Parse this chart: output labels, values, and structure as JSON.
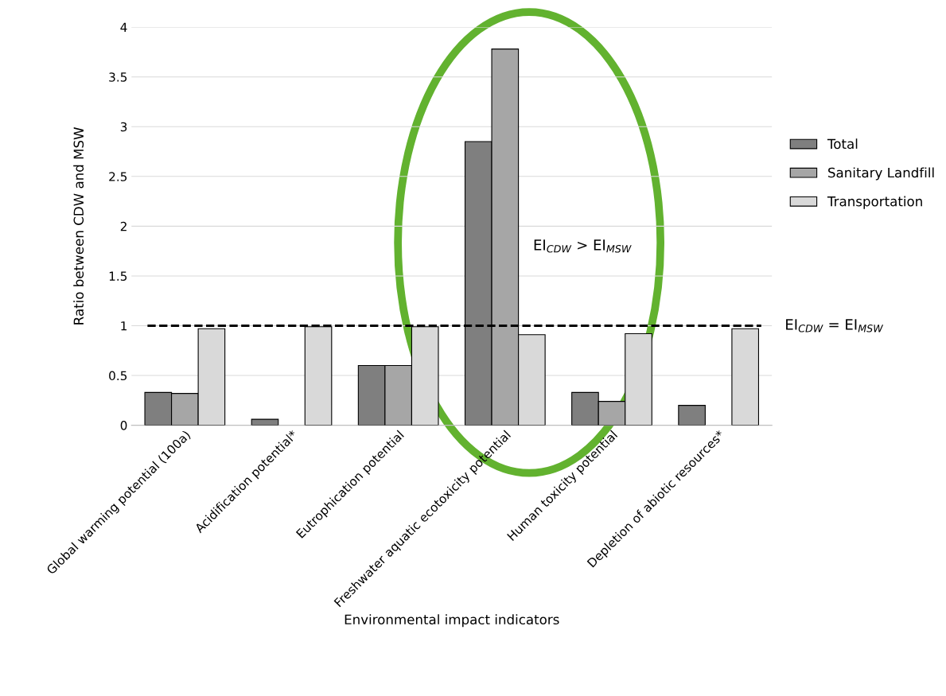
{
  "chart_data": {
    "type": "bar",
    "xlabel": "Environmental impact indicators",
    "ylabel": "Ratio between CDW and MSW",
    "categories": [
      "Global warming potential (100a)",
      "Acidification potential*",
      "Eutrophication potential",
      "Freshwater aquatic ecotoxicity potential",
      "Human toxicity potential",
      "Depletion of abiotic resources*"
    ],
    "series": [
      {
        "name": "Total",
        "color": "#7f7f7f",
        "values": [
          0.33,
          0.06,
          0.6,
          2.85,
          0.33,
          0.2
        ]
      },
      {
        "name": "Sanitary Landfill",
        "color": "#a6a6a6",
        "values": [
          0.32,
          null,
          0.6,
          3.78,
          0.24,
          null
        ]
      },
      {
        "name": "Transportation",
        "color": "#d9d9d9",
        "values": [
          0.97,
          0.99,
          0.99,
          0.91,
          0.92,
          0.97
        ]
      }
    ],
    "ylim": [
      0,
      4
    ],
    "yticks": [
      0,
      0.5,
      1,
      1.5,
      2,
      2.5,
      3,
      3.5,
      4
    ],
    "grid": "y",
    "legend": "right",
    "ref_lines": [
      {
        "axis": "y",
        "value": 1,
        "label": "EI$_{CDW}$ = EI$_{MSW}$",
        "color": "#000000",
        "line_style": "dashed"
      }
    ],
    "annotations": [
      "EI$_{CDW}$ > EI$_{MSW}$"
    ]
  }
}
